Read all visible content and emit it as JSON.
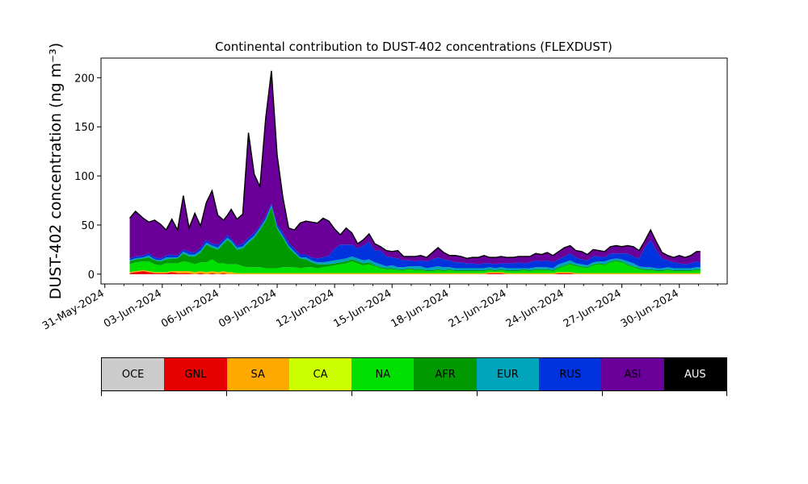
{
  "chart_data": {
    "type": "area",
    "title": "Continental contribution to DUST-402 concentrations (FLEXDUST)",
    "ylabel": "DUST-402 concentration (ng m⁻³)",
    "xlabel": "",
    "ylim": [
      -10,
      220
    ],
    "y_ticks": [
      0,
      50,
      100,
      150,
      200
    ],
    "x_tick_labels": [
      "31-May-2024",
      "03-Jun-2024",
      "06-Jun-2024",
      "09-Jun-2024",
      "12-Jun-2024",
      "15-Jun-2024",
      "18-Jun-2024",
      "21-Jun-2024",
      "24-Jun-2024",
      "27-Jun-2024",
      "30-Jun-2024"
    ],
    "x_unit": "days since 31-May-2024",
    "xlim": [
      -0.2,
      32.5
    ],
    "x": [
      1.3,
      1.6,
      2.0,
      2.3,
      2.6,
      2.9,
      3.2,
      3.5,
      3.8,
      4.1,
      4.4,
      4.7,
      5.0,
      5.3,
      5.6,
      5.9,
      6.2,
      6.4,
      6.6,
      6.9,
      7.2,
      7.5,
      7.8,
      8.1,
      8.4,
      8.7,
      9.0,
      9.3,
      9.6,
      9.9,
      10.2,
      10.5,
      10.8,
      11.1,
      11.4,
      11.7,
      12.0,
      12.3,
      12.6,
      12.9,
      13.2,
      13.5,
      13.8,
      14.1,
      14.4,
      14.7,
      15.0,
      15.3,
      15.6,
      15.9,
      16.2,
      16.5,
      16.8,
      17.1,
      17.4,
      17.7,
      18.0,
      18.3,
      18.6,
      18.9,
      19.2,
      19.5,
      19.8,
      20.1,
      20.4,
      20.7,
      21.0,
      21.3,
      21.6,
      21.9,
      22.2,
      22.5,
      22.8,
      23.1,
      23.4,
      23.7,
      24.0,
      24.3,
      24.6,
      24.9,
      25.2,
      25.5,
      25.8,
      26.1,
      26.4,
      26.7,
      27.0,
      27.3,
      27.6,
      27.9,
      28.2,
      28.5,
      28.8,
      29.1,
      29.4,
      29.7,
      30.0,
      30.3,
      30.6,
      30.9,
      31.1
    ],
    "series": [
      {
        "name": "GNL",
        "color": "#e60000",
        "values": [
          1,
          2,
          3,
          2,
          1,
          1,
          1,
          2,
          1,
          1,
          1,
          0,
          1,
          0,
          1,
          0,
          1,
          0,
          0,
          0,
          0,
          0,
          0,
          0,
          0,
          0,
          0,
          0,
          0,
          0,
          0,
          0,
          0,
          0,
          0,
          0,
          0,
          0,
          0,
          0,
          0,
          0,
          0,
          0,
          0,
          0,
          0,
          0,
          0,
          0,
          0,
          0,
          0,
          0,
          0,
          0,
          0,
          0,
          0,
          0,
          0,
          0,
          0,
          1,
          1,
          1,
          0,
          0,
          0,
          0,
          0,
          0,
          0,
          0,
          0,
          1,
          1,
          1,
          0,
          0,
          0,
          0,
          0,
          0,
          0,
          0,
          0,
          0,
          0,
          0,
          0,
          0,
          0,
          0,
          0,
          0,
          0,
          0,
          0,
          0,
          0
        ]
      },
      {
        "name": "SA",
        "color": "#ffaa00",
        "values": [
          1,
          1,
          1,
          1,
          1,
          1,
          1,
          1,
          2,
          2,
          2,
          2,
          2,
          2,
          2,
          2,
          2,
          2,
          2,
          1,
          1,
          1,
          1,
          1,
          1,
          1,
          1,
          1,
          1,
          1,
          1,
          1,
          1,
          1,
          1,
          1,
          1,
          1,
          1,
          1,
          1,
          1,
          1,
          1,
          1,
          1,
          1,
          1,
          1,
          1,
          1,
          1,
          1,
          1,
          1,
          1,
          1,
          1,
          1,
          1,
          1,
          1,
          1,
          1,
          1,
          1,
          1,
          1,
          1,
          1,
          1,
          1,
          1,
          1,
          1,
          1,
          1,
          1,
          1,
          1,
          1,
          1,
          1,
          1,
          1,
          1,
          1,
          1,
          1,
          1,
          1,
          1,
          1,
          1,
          1,
          1,
          1,
          1,
          1,
          1,
          1
        ]
      },
      {
        "name": "NA",
        "color": "#00e000",
        "values": [
          8,
          9,
          9,
          10,
          8,
          7,
          9,
          8,
          8,
          10,
          9,
          8,
          9,
          10,
          12,
          9,
          8,
          8,
          8,
          9,
          7,
          6,
          6,
          6,
          5,
          5,
          5,
          6,
          6,
          6,
          5,
          6,
          6,
          5,
          6,
          7,
          8,
          9,
          10,
          12,
          10,
          8,
          9,
          7,
          5,
          4,
          4,
          3,
          3,
          4,
          3,
          3,
          2,
          2,
          3,
          2,
          3,
          2,
          2,
          2,
          2,
          2,
          2,
          2,
          1,
          2,
          2,
          2,
          2,
          3,
          2,
          3,
          3,
          3,
          2,
          4,
          6,
          8,
          7,
          6,
          5,
          8,
          9,
          8,
          11,
          12,
          11,
          8,
          6,
          4,
          3,
          3,
          2,
          2,
          3,
          2,
          2,
          2,
          2,
          3,
          3
        ]
      },
      {
        "name": "AFR",
        "color": "#009a00",
        "values": [
          3,
          3,
          3,
          4,
          4,
          4,
          4,
          5,
          5,
          8,
          6,
          8,
          10,
          18,
          12,
          14,
          20,
          25,
          22,
          15,
          18,
          25,
          30,
          38,
          48,
          62,
          40,
          30,
          20,
          14,
          10,
          8,
          5,
          4,
          3,
          2,
          2,
          2,
          2,
          2,
          2,
          2,
          2,
          1,
          1,
          1,
          1,
          1,
          1,
          1,
          1,
          1,
          1,
          1,
          1,
          1,
          1,
          1,
          1,
          1,
          1,
          1,
          1,
          1,
          1,
          1,
          1,
          1,
          1,
          1,
          1,
          1,
          1,
          1,
          1,
          1,
          1,
          1,
          1,
          1,
          1,
          1,
          1,
          1,
          1,
          1,
          1,
          1,
          1,
          1,
          1,
          1,
          1,
          1,
          1,
          1,
          1,
          1,
          1,
          1,
          1
        ]
      },
      {
        "name": "EUR",
        "color": "#00a5bb",
        "values": [
          1,
          1,
          1,
          2,
          1,
          1,
          2,
          1,
          1,
          2,
          2,
          2,
          2,
          2,
          2,
          2,
          2,
          2,
          2,
          2,
          2,
          2,
          2,
          2,
          2,
          2,
          2,
          2,
          2,
          2,
          1,
          2,
          2,
          2,
          2,
          3,
          3,
          3,
          3,
          3,
          3,
          3,
          3,
          3,
          3,
          2,
          3,
          2,
          2,
          2,
          3,
          3,
          2,
          3,
          3,
          3,
          2,
          2,
          2,
          2,
          2,
          2,
          2,
          2,
          2,
          2,
          2,
          2,
          2,
          1,
          2,
          2,
          2,
          2,
          2,
          3,
          3,
          3,
          2,
          2,
          2,
          2,
          2,
          3,
          2,
          2,
          2,
          3,
          3,
          2,
          2,
          2,
          2,
          2,
          2,
          2,
          2,
          2,
          2,
          2,
          2
        ]
      },
      {
        "name": "RUS",
        "color": "#0033dd",
        "values": [
          2,
          2,
          2,
          2,
          2,
          2,
          2,
          3,
          2,
          2,
          3,
          2,
          3,
          3,
          2,
          3,
          2,
          3,
          2,
          2,
          3,
          3,
          3,
          2,
          3,
          2,
          3,
          3,
          3,
          3,
          3,
          3,
          3,
          4,
          5,
          6,
          12,
          15,
          14,
          12,
          10,
          15,
          18,
          12,
          14,
          10,
          8,
          9,
          7,
          6,
          5,
          6,
          7,
          8,
          9,
          8,
          7,
          6,
          6,
          5,
          5,
          4,
          5,
          4,
          4,
          4,
          5,
          5,
          6,
          5,
          6,
          7,
          6,
          7,
          6,
          5,
          6,
          7,
          6,
          5,
          5,
          6,
          5,
          4,
          6,
          5,
          6,
          8,
          7,
          8,
          20,
          28,
          18,
          10,
          7,
          6,
          5,
          4,
          5,
          6,
          5
        ]
      },
      {
        "name": "ASI",
        "color": "#6a0099",
        "values": [
          41,
          46,
          38,
          32,
          38,
          35,
          26,
          36,
          26,
          55,
          24,
          40,
          22,
          38,
          54,
          30,
          20,
          20,
          30,
          27,
          30,
          107,
          60,
          40,
          100,
          135,
          70,
          36,
          15,
          19,
          32,
          34,
          36,
          36,
          40,
          35,
          20,
          10,
          17,
          12,
          5,
          6,
          8,
          7,
          4,
          6,
          6,
          8,
          4,
          4,
          5,
          5,
          4,
          7,
          10,
          7,
          5,
          7,
          6,
          5,
          6,
          7,
          8,
          6,
          7,
          7,
          6,
          6,
          6,
          7,
          6,
          7,
          7,
          8,
          7,
          8,
          9,
          8,
          7,
          8,
          6,
          7,
          6,
          6,
          7,
          8,
          7,
          8,
          10,
          8,
          7,
          10,
          9,
          6,
          5,
          5,
          8,
          7,
          8,
          10,
          11
        ]
      }
    ]
  },
  "legend": {
    "items": [
      {
        "label": "OCE",
        "color": "#cccccc",
        "text_color": "#000000"
      },
      {
        "label": "GNL",
        "color": "#e60000",
        "text_color": "#000000"
      },
      {
        "label": "SA",
        "color": "#ffaa00",
        "text_color": "#000000"
      },
      {
        "label": "CA",
        "color": "#ccff00",
        "text_color": "#000000"
      },
      {
        "label": "NA",
        "color": "#00e000",
        "text_color": "#000000"
      },
      {
        "label": "AFR",
        "color": "#009a00",
        "text_color": "#000000"
      },
      {
        "label": "EUR",
        "color": "#00a5bb",
        "text_color": "#000000"
      },
      {
        "label": "RUS",
        "color": "#0033dd",
        "text_color": "#000000"
      },
      {
        "label": "ASI",
        "color": "#6a0099",
        "text_color": "#000000"
      },
      {
        "label": "AUS",
        "color": "#000000",
        "text_color": "#ffffff"
      }
    ]
  }
}
